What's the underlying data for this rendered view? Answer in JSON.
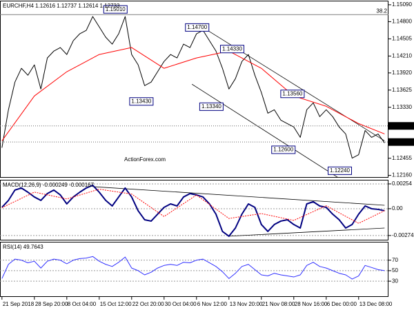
{
  "chart_data": [
    {
      "type": "line",
      "title": "EURCHF,H4  1.12616 1.12737 1.12614 1.12733",
      "watermark": "ActionForex.com",
      "x": [
        0,
        1,
        2,
        3,
        4,
        5,
        6,
        7,
        8,
        9,
        10,
        11,
        12,
        13,
        14,
        15,
        16,
        17,
        18,
        19,
        20,
        21,
        22,
        23,
        24,
        25,
        26,
        27,
        28,
        29,
        30,
        31,
        32,
        33,
        34,
        35,
        36,
        37,
        38,
        39,
        40,
        41,
        42,
        43,
        44,
        45,
        46,
        47,
        48,
        49,
        50,
        51,
        52,
        53,
        54,
        55,
        56,
        57,
        58,
        59
      ],
      "series": [
        {
          "color": "#000000",
          "values": [
            1.12635,
            1.13287,
            1.13762,
            1.13999,
            1.1388,
            1.14058,
            1.13643,
            1.14177,
            1.14295,
            1.14355,
            1.14236,
            1.14473,
            1.14592,
            1.14651,
            1.14888,
            1.1471,
            1.14533,
            1.14414,
            1.14592,
            1.14888,
            1.14236,
            1.14058,
            1.13702,
            1.13762,
            1.1394,
            1.14117,
            1.14236,
            1.14177,
            1.14414,
            1.14355,
            1.14592,
            1.14651,
            1.14473,
            1.14295,
            1.13999,
            1.13643,
            1.13821,
            1.14117,
            1.14236,
            1.1388,
            1.13584,
            1.13228,
            1.13287,
            1.13109,
            1.1305,
            1.12991,
            1.12813,
            1.13287,
            1.13406,
            1.13169,
            1.13287,
            1.13169,
            1.12991,
            1.12872,
            1.12457,
            1.12516,
            1.12931,
            1.12813,
            1.12872,
            1.12718
          ]
        },
        {
          "color": "#ff0000",
          "x": [
            0,
            5,
            10,
            15,
            20,
            25,
            30,
            35,
            40,
            45,
            50,
            55,
            59
          ],
          "values": [
            1.12754,
            1.13524,
            1.1394,
            1.14236,
            1.14355,
            1.13999,
            1.14177,
            1.14295,
            1.13999,
            1.13524,
            1.13347,
            1.1305,
            1.12872
          ]
        }
      ],
      "xlim": [
        -0.3,
        59.6
      ],
      "ylim": [
        1.1212,
        1.1516
      ],
      "yticks": [
        {
          "value": 1.1509,
          "label": "1.15090"
        },
        {
          "value": 1.148,
          "label": "1.14800"
        },
        {
          "value": 1.14505,
          "label": "1.14505"
        },
        {
          "value": 1.1421,
          "label": "1.14210"
        },
        {
          "value": 1.1392,
          "label": "1.13920"
        },
        {
          "value": 1.13625,
          "label": "1.13625"
        },
        {
          "value": 1.1333,
          "label": "1.13330"
        },
        {
          "value": 1.12455,
          "label": "1.12455"
        },
        {
          "value": 1.1216,
          "label": "1.12160"
        }
      ],
      "levels": [
        {
          "value": 1.1301,
          "label": "1.13010"
        },
        {
          "value": 1.12733,
          "label": "1.12733"
        }
      ],
      "fib_level": {
        "value": 1.1492,
        "name": "38.2"
      },
      "trendlines": [
        {
          "x": [
            31,
            59
          ],
          "values": [
            1.14699,
            1.12754
          ]
        },
        {
          "x": [
            29.3,
            51.8
          ],
          "values": [
            1.13726,
            1.12125
          ]
        }
      ],
      "annotations": [
        {
          "label": "1.15010",
          "value": 1.1501,
          "x": 17.5
        },
        {
          "label": "1.14700",
          "value": 1.147,
          "x": 30.1
        },
        {
          "label": "1.14330",
          "value": 1.1433,
          "x": 35.5
        },
        {
          "label": "1.13430",
          "value": 1.1343,
          "x": 21.5
        },
        {
          "label": "1.13340",
          "value": 1.1334,
          "x": 32.3
        },
        {
          "label": "1.13560",
          "value": 1.1356,
          "x": 44.8
        },
        {
          "label": "1.12600",
          "value": 1.126,
          "x": 43.4
        },
        {
          "label": "1.12240",
          "value": 1.1224,
          "x": 52.1
        }
      ],
      "grid": false
    },
    {
      "type": "line",
      "title": "MACD(12,26,9) -0.000249 -0.000167",
      "x": [
        0,
        1,
        2,
        3,
        4,
        5,
        6,
        7,
        8,
        9,
        10,
        11,
        12,
        13,
        14,
        15,
        16,
        17,
        18,
        19,
        20,
        21,
        22,
        23,
        24,
        25,
        26,
        27,
        28,
        29,
        30,
        31,
        32,
        33,
        34,
        35,
        36,
        37,
        38,
        39,
        40,
        41,
        42,
        43,
        44,
        45,
        46,
        47,
        48,
        49,
        50,
        51,
        52,
        53,
        54,
        55,
        56,
        57,
        58,
        59
      ],
      "series": [
        {
          "color": "#000080",
          "width": 2,
          "values": [
            0.00014,
            0.00085,
            0.00191,
            0.00212,
            0.00169,
            0.0012,
            0.00085,
            0.00155,
            0.00191,
            0.00141,
            0.00049,
            0.0012,
            0.00169,
            0.00212,
            0.0024,
            0.00169,
            0.00085,
            0.00028,
            0.0012,
            0.00212,
            0.0012,
            -0.00021,
            -0.00113,
            -0.00127,
            -0.00056,
            0.00014,
            0.00049,
            0.00028,
            0.0012,
            0.00155,
            0.00141,
            0.0012,
            0.00049,
            -0.00056,
            -0.00233,
            -0.00282,
            -0.00198,
            -0.00056,
            0.00049,
            0.00014,
            -0.00162,
            -0.00233,
            -0.00162,
            -0.00127,
            -0.00113,
            -0.00162,
            -0.00198,
            0.00049,
            0.00071,
            0.00028,
            0.00014,
            -0.00056,
            -0.00113,
            -0.00198,
            -0.00162,
            -0.00056,
            0.00028,
            0,
            -7e-05,
            -0.00021
          ]
        },
        {
          "color": "#ff0000",
          "dashed": true,
          "x": [
            0,
            5,
            10,
            15,
            20,
            25,
            30,
            35,
            40,
            45,
            50,
            55,
            59
          ],
          "values": [
            0.0001,
            0.0017,
            0.001,
            0.002,
            0.0015,
            -0.0008,
            0.0014,
            -0.001,
            -0.0005,
            -0.0012,
            0.0003,
            -0.0015,
            -0.0002
          ]
        }
      ],
      "xlim": [
        -0.3,
        59.6
      ],
      "ylim": [
        -0.00325,
        0.00296
      ],
      "yticks": [
        {
          "value": 0.00254,
          "label": "0.00254"
        },
        {
          "value": 0,
          "label": "0.00"
        },
        {
          "value": -0.002747,
          "label": "-0.002747"
        }
      ],
      "trendlines": [
        {
          "x": [
            14,
            59
          ],
          "values": [
            0.00226,
            0.00035
          ]
        },
        {
          "x": [
            35,
            59
          ],
          "values": [
            -0.00282,
            -0.00198
          ]
        }
      ],
      "grid": true
    },
    {
      "type": "line",
      "title": "RSI(14) 49.7643",
      "x": [
        0,
        1,
        2,
        3,
        4,
        5,
        6,
        7,
        8,
        9,
        10,
        11,
        12,
        13,
        14,
        15,
        16,
        17,
        18,
        19,
        20,
        21,
        22,
        23,
        24,
        25,
        26,
        27,
        28,
        29,
        30,
        31,
        32,
        33,
        34,
        35,
        36,
        37,
        38,
        39,
        40,
        41,
        42,
        43,
        44,
        45,
        46,
        47,
        48,
        49,
        50,
        51,
        52,
        53,
        54,
        55,
        56,
        57,
        58,
        59
      ],
      "series": [
        {
          "color": "#3030ff",
          "values": [
            35,
            62,
            72,
            70,
            65,
            68,
            55,
            68,
            72,
            70,
            63,
            70,
            73,
            74,
            77,
            68,
            62,
            58,
            66,
            76,
            55,
            50,
            42,
            47,
            55,
            60,
            62,
            60,
            66,
            65,
            70,
            72,
            65,
            58,
            48,
            35,
            45,
            58,
            62,
            52,
            42,
            40,
            45,
            42,
            40,
            38,
            42,
            60,
            66,
            58,
            55,
            50,
            45,
            42,
            34,
            40,
            60,
            56,
            52,
            50
          ]
        }
      ],
      "xlim": [
        -0.3,
        59.6
      ],
      "ylim": [
        0,
        105
      ],
      "yticks": [
        70,
        50,
        30
      ],
      "xticks": [
        {
          "value": 0,
          "label": "21 Sep 2018"
        },
        {
          "value": 5,
          "label": "28 Sep 20:00"
        },
        {
          "value": 10,
          "label": "8 Oct 04:00"
        },
        {
          "value": 15,
          "label": "15 Oct 12:00"
        },
        {
          "value": 20,
          "label": "22 Oct 20:00"
        },
        {
          "value": 25,
          "label": "30 Oct 04:00"
        },
        {
          "value": 30,
          "label": "6 Nov 12:00"
        },
        {
          "value": 35,
          "label": "13 Nov 20:00"
        },
        {
          "value": 40,
          "label": "21 Nov 08:00"
        },
        {
          "value": 45,
          "label": "28 Nov 16:00"
        },
        {
          "value": 50,
          "label": "6 Dec 00:00"
        },
        {
          "value": 55,
          "label": "13 Dec 08:00"
        }
      ],
      "grid": true
    }
  ]
}
